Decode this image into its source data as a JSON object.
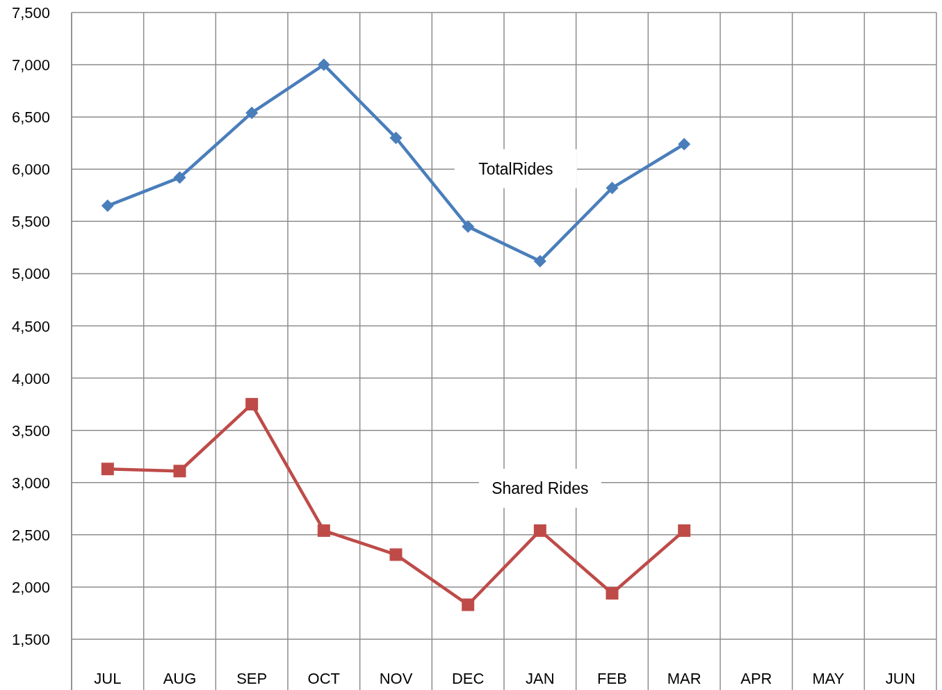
{
  "chart_data": {
    "type": "line",
    "categories": [
      "JUL",
      "AUG",
      "SEP",
      "OCT",
      "NOV",
      "DEC",
      "JAN",
      "FEB",
      "MAR",
      "APR",
      "MAY",
      "JUN"
    ],
    "series": [
      {
        "name": "TotalRides",
        "color": "#4a7ebb",
        "marker": "diamond",
        "values": [
          5650,
          5920,
          6540,
          7000,
          6300,
          5450,
          5120,
          5820,
          6240,
          null,
          null,
          null
        ]
      },
      {
        "name": "Shared Rides",
        "color": "#be4b48",
        "marker": "square",
        "values": [
          3130,
          3110,
          3750,
          2540,
          2310,
          1830,
          2540,
          1940,
          2540,
          null,
          null,
          null
        ]
      }
    ],
    "ylim": [
      1014,
      7500
    ],
    "yticks": [
      {
        "value": 1500,
        "label": "1,500"
      },
      {
        "value": 2000,
        "label": "2,000"
      },
      {
        "value": 2500,
        "label": "2,500"
      },
      {
        "value": 3000,
        "label": "3,000"
      },
      {
        "value": 3500,
        "label": "3,500"
      },
      {
        "value": 4000,
        "label": "4,000"
      },
      {
        "value": 4500,
        "label": "4,500"
      },
      {
        "value": 5000,
        "label": "5,000"
      },
      {
        "value": 5500,
        "label": "5,500"
      },
      {
        "value": 6000,
        "label": "6,000"
      },
      {
        "value": 6500,
        "label": "6,500"
      },
      {
        "value": 7000,
        "label": "7,000"
      },
      {
        "value": 7500,
        "label": "7,500"
      }
    ],
    "grid": true,
    "line_style": "solid"
  }
}
